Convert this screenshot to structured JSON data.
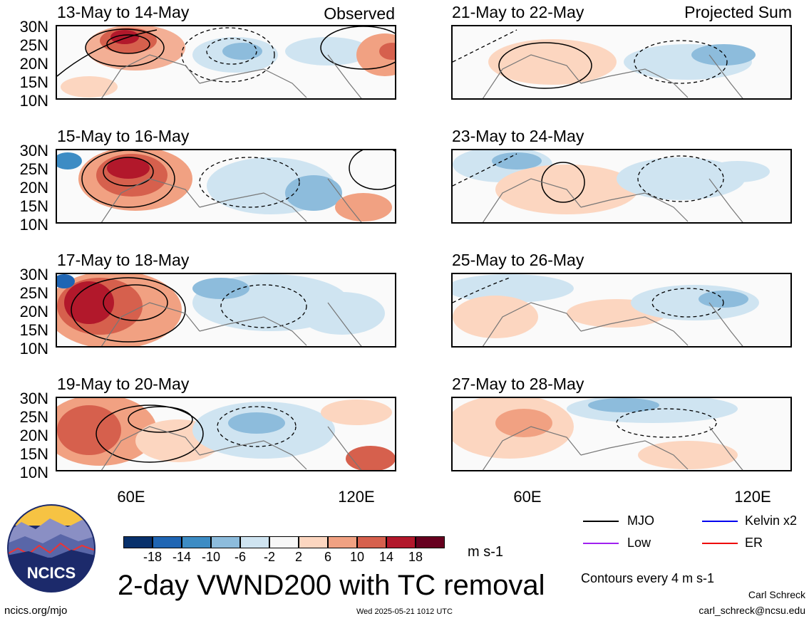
{
  "panels": {
    "p1": {
      "title": "13-May to 14-May",
      "note": "Observed"
    },
    "p2": {
      "title": "21-May to 22-May",
      "note": "Projected Sum"
    },
    "p3": {
      "title": "15-May to 16-May"
    },
    "p4": {
      "title": "23-May to 24-May"
    },
    "p5": {
      "title": "17-May to 18-May"
    },
    "p6": {
      "title": "25-May to 26-May"
    },
    "p7": {
      "title": "19-May to 20-May"
    },
    "p8": {
      "title": "27-May to 28-May"
    }
  },
  "axes": {
    "lat_labels": [
      "30N",
      "25N",
      "20N",
      "15N",
      "10N"
    ],
    "lon_labels": [
      "60E",
      "120E"
    ]
  },
  "colorbar": {
    "labels": [
      "-18",
      "-14",
      "-10",
      "-6",
      "-2",
      "2",
      "6",
      "10",
      "14",
      "18"
    ],
    "units": "m s-1",
    "colors": [
      "#08306b",
      "#1f65b3",
      "#3d8cc4",
      "#8dbcdc",
      "#cfe4f1",
      "#f7f7f7",
      "#fcd6c0",
      "#f1a182",
      "#d6604d",
      "#b2182b",
      "#67001f"
    ]
  },
  "legend": {
    "items": [
      {
        "label": "MJO",
        "color": "#000000"
      },
      {
        "label": "Kelvin x2",
        "color": "#0000ee"
      },
      {
        "label": "Low",
        "color": "#a020f0"
      },
      {
        "label": "ER",
        "color": "#ee0000"
      }
    ],
    "contour_note": "Contours every 4 m s-1"
  },
  "footer": {
    "main_title": "2-day VWND200 with TC removal",
    "site": "ncics.org/mjo",
    "timestamp": "Wed 2025-05-21 1012 UTC",
    "author": "Carl Schreck",
    "email": "carl_schreck@ncsu.edu",
    "logo_text": "NCICS"
  }
}
